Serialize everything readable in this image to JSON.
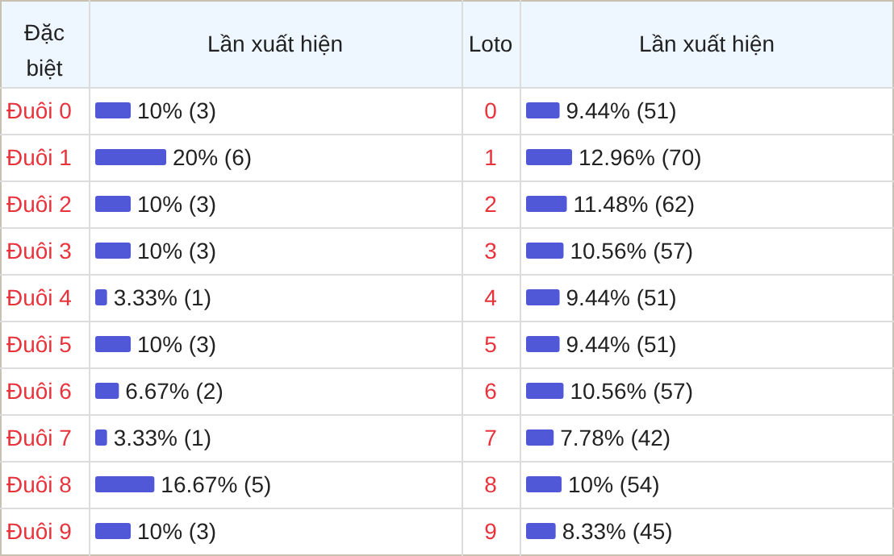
{
  "chart_data": [
    {
      "type": "bar",
      "orientation": "horizontal",
      "ylabel": "Đặc biệt",
      "xlabel": "Lần xuất hiện",
      "categories": [
        "Đuôi 0",
        "Đuôi 1",
        "Đuôi 2",
        "Đuôi 3",
        "Đuôi 4",
        "Đuôi 5",
        "Đuôi 6",
        "Đuôi 7",
        "Đuôi 8",
        "Đuôi 9"
      ],
      "values": [
        10,
        20,
        10,
        10,
        3.33,
        10,
        6.67,
        3.33,
        16.67,
        10
      ],
      "color": "#5058d8",
      "value_labels": [
        "10% (3)",
        "20% (6)",
        "10% (3)",
        "10% (3)",
        "3.33% (1)",
        "10% (3)",
        "6.67% (2)",
        "3.33% (1)",
        "16.67% (5)",
        "10% (3)"
      ]
    },
    {
      "type": "bar",
      "orientation": "horizontal",
      "ylabel": "Loto",
      "xlabel": "Lần xuất hiện",
      "categories": [
        "0",
        "1",
        "2",
        "3",
        "4",
        "5",
        "6",
        "7",
        "8",
        "9"
      ],
      "values": [
        9.44,
        12.96,
        11.48,
        10.56,
        9.44,
        9.44,
        10.56,
        7.78,
        10,
        8.33
      ],
      "color": "#5058d8",
      "value_labels": [
        "9.44% (51)",
        "12.96% (70)",
        "11.48% (62)",
        "10.56% (57)",
        "9.44% (51)",
        "9.44% (51)",
        "10.56% (57)",
        "7.78% (42)",
        "10% (54)",
        "8.33% (45)"
      ]
    }
  ]
}
